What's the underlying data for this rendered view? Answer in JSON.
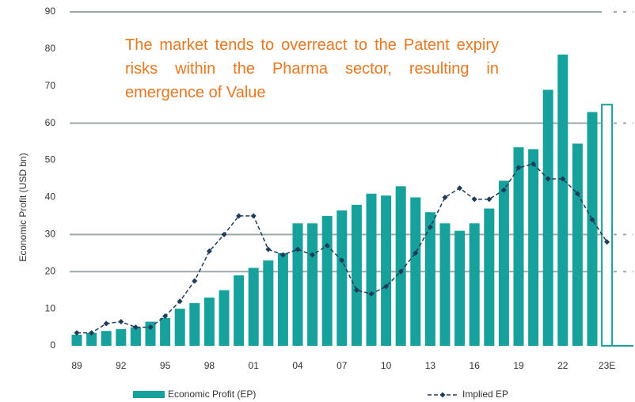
{
  "chart_data": {
    "type": "bar",
    "annotation": "The market tends to overreact to the Patent expiry risks within the Pharma sector, resulting in emergence of Value",
    "y_label": "Economic Profit (USD bn)",
    "categories": [
      "89",
      null,
      null,
      "92",
      null,
      null,
      "95",
      null,
      null,
      "98",
      null,
      null,
      "01",
      null,
      null,
      "04",
      null,
      null,
      "07",
      null,
      null,
      "10",
      null,
      null,
      "13",
      null,
      null,
      "16",
      null,
      null,
      "19",
      null,
      null,
      "22",
      null,
      null,
      "23E"
    ],
    "series": [
      {
        "name": "Economic Profit (EP)",
        "type": "bar",
        "color": "#17a19c",
        "values": [
          3,
          3.5,
          4,
          4.5,
          5,
          6.5,
          7.5,
          10,
          11.5,
          13,
          15,
          19,
          21,
          23,
          25,
          33,
          33,
          35,
          36.5,
          38,
          41,
          40.5,
          43,
          40,
          36,
          33,
          31,
          33,
          37,
          44.5,
          53.5,
          53,
          69,
          78.5,
          54.5,
          63,
          65
        ]
      },
      {
        "name": "Implied EP",
        "type": "line",
        "color": "#1f3c5a",
        "values": [
          3.5,
          3.5,
          6,
          6.5,
          5,
          5,
          8,
          12,
          17.5,
          25.5,
          30,
          35,
          35,
          26,
          24.5,
          26,
          24.5,
          27,
          23,
          15,
          14,
          16,
          20,
          25,
          32,
          40,
          42.5,
          39.5,
          39.5,
          42,
          48,
          49,
          45,
          45,
          41,
          34,
          28
        ]
      }
    ],
    "ylim": [
      0,
      90
    ],
    "yticks": [
      0,
      10,
      20,
      30,
      40,
      50,
      60,
      70,
      80,
      90
    ],
    "grid_lines": [
      20,
      30,
      60,
      90
    ],
    "legend": "bottom"
  }
}
